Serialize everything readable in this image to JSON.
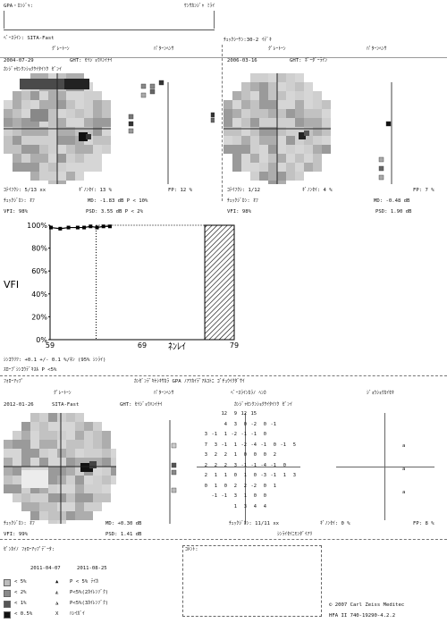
{
  "header": {
    "name_label": "GPA・ｶﾝｼﾞｬ:",
    "patient_name": "ｹﾝｻｶﾝｼﾞｬ ﾐﾗｲ",
    "program_label": "ﾍﾞｰｽﾗｲﾝ: SITA-Fast",
    "program_right": "ﾁｪｯｸｼｰｹﾝ:30-2 ｲﾃﾞｷ"
  },
  "baseline1": {
    "date": "2004-07-29",
    "title": "ｸﾞﾚｰﾄｰﾝ",
    "pattern_title": "ﾊﾟﾀｰﾝﾍﾝｻ",
    "ght": "GHT: ｾｲｼﾞｮｳﾊﾝｲﾅｲ",
    "sub": "ｶﾝｼﾞｬｾﾝｸﾝｼｮｸｹｲﾀｲｿｸ ｾﾞﾝｲ",
    "fixation": "ｺﾃｲﾌｸｼ: 5/13 xx",
    "fn": "ｷﾞﾉﾝｾｲ: 13 %",
    "fp": "FP: 12 %",
    "check": "ﾁｪｯｸｼﾞｶﾝ: ｵﾌ",
    "md": "MD: -1.83 dB   P < 10%",
    "vfi": "VFI: 98%",
    "psd": "PSD: 3.55 dB  P < 2%"
  },
  "baseline2": {
    "date": "2006-03-16",
    "title": "ｸﾞﾚｰﾄｰﾝ",
    "pattern_title": "ﾊﾟﾀｰﾝﾍﾝｻ",
    "ght": "GHT: ﾎﾞｰﾀﾞｰﾗｲﾝ",
    "fixation": "ｺﾃｲﾌｸｼ: 1/12",
    "fn": "ｷﾞﾉﾝｾｲ: 4 %",
    "fp": "FP: 7 %",
    "check": "ﾁｪｯｸｼﾞｶﾝ: ｵﾌ",
    "md": "MD: -0.48 dB",
    "vfi": "VFI: 98%",
    "psd": "PSD: 1.90 dB"
  },
  "chart_data": {
    "type": "line",
    "ylabel": "VFI",
    "xlabel": "ﾈﾝﾚｲ",
    "x_ticks": [
      "59",
      "69",
      "79"
    ],
    "y_ticks": [
      "100%",
      "80%",
      "60%",
      "40%",
      "20%",
      "0%"
    ],
    "xlim": [
      59,
      79
    ],
    "ylim": [
      0,
      100
    ],
    "x": [
      59.1,
      60.1,
      61.0,
      62.0,
      62.7,
      63.4,
      64.1,
      64.8,
      65.5
    ],
    "y": [
      98,
      97,
      98,
      98,
      98,
      99,
      98,
      99,
      99
    ],
    "projection_x": 64.0,
    "hatched_range": [
      75.8,
      79
    ]
  },
  "trend": {
    "rate": "ｼﾝｺｳﾘﾂ: +0.1 +/- 0.1 %/ﾈﾝ (95% ｼﾝﾗｲ)",
    "slope": "ｽﾛｰﾌﾟｼﾝｺｳﾃﾞｷｽﾙ P <5%"
  },
  "followup": {
    "title": "ﾌｫﾛｰｱｯﾌﾟ",
    "date": "2012-01-26",
    "program": "SITA-Fast",
    "gray_title": "ｸﾞﾚｰﾄｰﾝ",
    "pattern_title": "ﾊﾟﾀｰﾝﾍﾝｻ",
    "ght": "GHT: ｾｲｼﾞｮｳﾊﾝｲﾅｲ",
    "baseline_diff_title": "ﾍﾞｰｽﾗｲﾝｶﾗﾉ ﾍﾝｶ",
    "sub": "ｶﾝｼﾞｬｾﾝｸﾝｼｮｸｹｲﾀｲｿｸ ｾﾞﾝｲ",
    "gpa_title": "ｼﾞｮｳｼｮｳｶｲｾｷ",
    "header_line": "ｶﾝｾﾞﾝﾃﾞｷﾅｼｷｻｶﾗ GPA ﾉｱﾂｶｲﾃﾞｱﾙｺﾄﾆ ｺﾞﾁｭｳｲｸﾀﾞｻｲ",
    "check": "ﾁｪｯｸｼﾞｶﾝ: ｵﾌ",
    "md": "MD: +0.30 dB",
    "fixation": "ﾁｪｯｸｼﾞｶﾝ: 11/11 xx",
    "fn": "ｷﾞﾉﾝｾｲ: 0 %",
    "fp": "FP: 8 %",
    "vfi": "VFI: 99%",
    "psd": "PSD: 1.41 dB",
    "reliability": "ｼﾝﾗｲｾｲﾆﾓﾝﾀﾞｲｱﾘ",
    "numbers": [
      [
        "",
        "",
        "12",
        "9",
        "12",
        "15",
        "",
        ""
      ],
      [
        "",
        "",
        "4",
        "3",
        "0",
        "-2",
        "0",
        "-1"
      ],
      [
        "3",
        "-1",
        "1",
        "-2",
        "-1",
        "-1",
        "0",
        ""
      ],
      [
        "7",
        "3",
        "-1",
        "1",
        "-2",
        "-4",
        "-1",
        "0",
        "-1",
        "5"
      ],
      [
        "3",
        "2",
        "2",
        "1",
        "0",
        "0",
        "0",
        "2"
      ],
      [
        "2",
        "2",
        "2",
        "3",
        "-1",
        "-1",
        "-4",
        "-1",
        "0"
      ],
      [
        "2",
        "1",
        "1",
        "0",
        "1",
        "0",
        "-3",
        "-1",
        "1",
        "3"
      ],
      [
        "0",
        "1",
        "0",
        "2",
        "2",
        "-2",
        "0",
        "1"
      ],
      [
        "",
        "-1",
        "-1",
        "3",
        "1",
        "0",
        "0"
      ],
      [
        "",
        "",
        "",
        "1",
        "3",
        "4",
        "4"
      ]
    ],
    "right_marks": [
      "a",
      "a",
      "a"
    ]
  },
  "comments": {
    "label": "ｺﾒﾝﾄ:"
  },
  "legend": {
    "title": "ｾﾞﾝｶｲﾉ ﾌｫﾛｰｱｯﾌﾟﾃﾞｰﾀ:",
    "dates": [
      "2011-04-07",
      "2011-08-25"
    ],
    "items": [
      {
        "sym": "< 5%",
        "color": "#bdbdbd"
      },
      {
        "sym": "< 2%",
        "color": "#8a8a8a"
      },
      {
        "sym": "< 1%",
        "color": "#555555"
      },
      {
        "sym": "< 0.5%",
        "color": "#111111"
      }
    ],
    "gpa_items": [
      {
        "sym": "▲",
        "text": "P < 5% ﾃｲｶ"
      },
      {
        "sym": "◭",
        "text": "P<5%(2ｶｲﾚﾝｿﾞｸ)"
      },
      {
        "sym": "◮",
        "text": "P<5%(3ｶｲﾚﾝｿﾞｸ)"
      },
      {
        "sym": "X",
        "text": "ﾊﾝｲｶﾞｲ"
      }
    ],
    "copyright": "© 2007 Carl Zeiss Meditec",
    "version": "HFA II 740-19290-4.2.2"
  }
}
